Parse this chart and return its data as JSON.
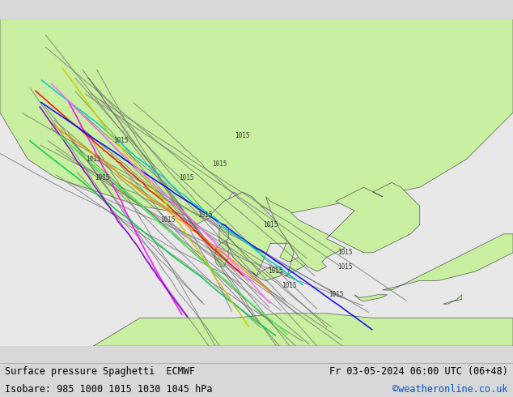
{
  "title_left": "Surface pressure Spaghetti  ECMWF",
  "title_right": "Fr 03-05-2024 06:00 UTC (06+48)",
  "subtitle": "Isobare: 985 1000 1015 1030 1045 hPa",
  "credit": "©weatheronline.co.uk",
  "background_map": "#c8f0a0",
  "background_sea": "#e8e8e8",
  "land_color": "#c8f0a0",
  "border_color": "#555555",
  "footer_bg": "#f0f0f0",
  "text_color_black": "#000000",
  "text_color_blue": "#0055cc",
  "fig_width": 6.34,
  "fig_height": 4.9,
  "dpi": 100,
  "ensemble_colors": [
    "#808080",
    "#808080",
    "#808080",
    "#808080",
    "#808080",
    "#808080",
    "#808080",
    "#808080",
    "#808080",
    "#808080",
    "#808080",
    "#808080",
    "#808080",
    "#808080",
    "#808080",
    "#808080",
    "#808080",
    "#808080",
    "#808080",
    "#808080",
    "#ff00ff",
    "#ff8800",
    "#ff0000",
    "#0000ff",
    "#00cc00",
    "#00cccc",
    "#ffff00",
    "#8800ff"
  ],
  "num_ensemble_lines": 20,
  "isobar_value": 1015,
  "map_xlim": [
    -15,
    40
  ],
  "map_ylim": [
    30,
    65
  ]
}
